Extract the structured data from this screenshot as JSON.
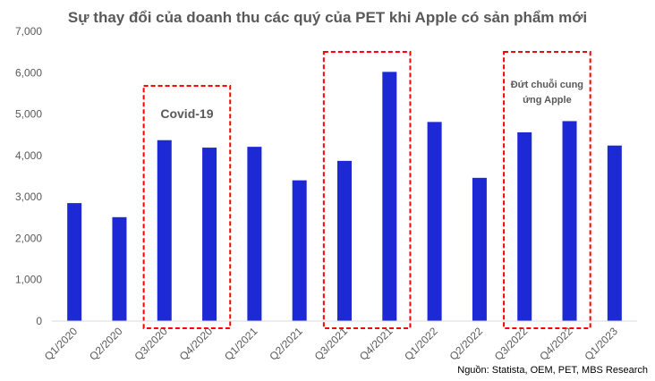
{
  "chart_data": {
    "type": "bar",
    "title": "Sự thay đổi của doanh thu các quý của PET khi Apple có sản phẩm mới",
    "categories": [
      "Q1/2020",
      "Q2/2020",
      "Q3/2020",
      "Q4/2020",
      "Q1/2021",
      "Q2/2021",
      "Q3/2021",
      "Q4/2021",
      "Q1/2022",
      "Q2/2022",
      "Q3/2022",
      "Q4/2022",
      "Q1/2023"
    ],
    "values": [
      2850,
      2510,
      4370,
      4190,
      4210,
      3400,
      3870,
      6020,
      4810,
      3460,
      4560,
      4830,
      4240
    ],
    "ylim": [
      0,
      7000
    ],
    "yticks": [
      "0",
      "1,000",
      "2,000",
      "3,000",
      "4,000",
      "5,000",
      "6,000",
      "7,000"
    ],
    "xlabel": "",
    "ylabel": "",
    "grid": false,
    "bar_color": "#1e29d6",
    "highlight_color": "#ff0000",
    "annotations": [
      {
        "lines": [
          "Covid-19"
        ],
        "from": 2,
        "to": 3
      },
      {
        "lines": [],
        "from": 6,
        "to": 7
      },
      {
        "lines": [
          "Đứt chuỗi cung",
          "ứng Apple"
        ],
        "from": 10,
        "to": 11
      }
    ],
    "source": "Nguồn: Statista, OEM, PET, MBS Research"
  }
}
